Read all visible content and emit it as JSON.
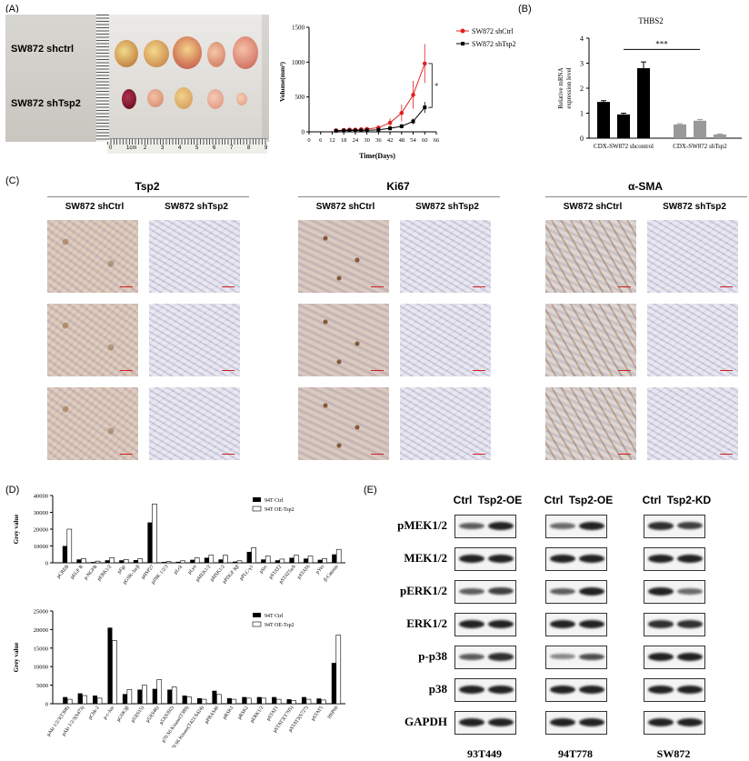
{
  "panels": {
    "a": "(A)",
    "b": "(B)",
    "c": "(C)",
    "d": "(D)",
    "e": "(E)"
  },
  "panelA": {
    "photo_label_top": "SW872 shctrl",
    "photo_label_bottom": "SW872 shTsp2",
    "ruler_digits": [
      "0",
      "1cm",
      "2",
      "3",
      "4",
      "5",
      "6",
      "7",
      "8",
      "9"
    ]
  },
  "growth": {
    "chart_data": {
      "type": "line",
      "xlabel": "Time(Days)",
      "ylabel": "Volume(mm³)",
      "x_ticks": [
        0,
        6,
        12,
        18,
        24,
        30,
        36,
        42,
        48,
        54,
        60,
        66
      ],
      "y_ticks": [
        0,
        500,
        1000,
        1500
      ],
      "xlim": [
        0,
        66
      ],
      "ylim": [
        0,
        1500
      ],
      "x": [
        14,
        18,
        21,
        24,
        27,
        30,
        36,
        42,
        48,
        54,
        60
      ],
      "series": [
        {
          "name": "SW872 shCtrl",
          "color": "#e02020",
          "values": [
            20,
            25,
            30,
            30,
            35,
            40,
            60,
            130,
            270,
            530,
            980
          ],
          "err": [
            10,
            10,
            10,
            12,
            12,
            15,
            25,
            60,
            120,
            200,
            280
          ]
        },
        {
          "name": "SW872 shTsp2",
          "color": "#000000",
          "values": [
            15,
            18,
            20,
            20,
            20,
            22,
            30,
            50,
            80,
            150,
            350
          ],
          "err": [
            5,
            5,
            5,
            6,
            6,
            8,
            10,
            20,
            30,
            40,
            80
          ]
        }
      ],
      "annotation": "*"
    }
  },
  "thbs2": {
    "chart_data": {
      "type": "bar",
      "title": "THBS2",
      "ylabel": "Relative mRNA expression level",
      "y_ticks": [
        0,
        1,
        2,
        3,
        4
      ],
      "ylim": [
        0,
        4
      ],
      "groups": [
        "CDX-SW872 shcontrol",
        "CDX-SW872 shTsp2"
      ],
      "values": [
        1.45,
        0.95,
        2.8,
        0.55,
        0.7,
        0.15
      ],
      "errors": [
        0.05,
        0.05,
        0.25,
        0.03,
        0.05,
        0.02
      ],
      "group_index": [
        0,
        0,
        0,
        1,
        1,
        1
      ],
      "colors": [
        "#000000",
        "#999999"
      ],
      "annotation": "***"
    }
  },
  "ihc": {
    "groups": [
      {
        "title": "Tsp2",
        "cols": [
          "SW872 shCtrl",
          "SW872 shTsp2"
        ]
      },
      {
        "title": "Ki67",
        "cols": [
          "SW872 shCtrl",
          "SW872 shTsp2"
        ]
      },
      {
        "title": "α-SMA",
        "cols": [
          "SW872 shCtrl",
          "SW872 shTsp2"
        ]
      }
    ]
  },
  "array1": {
    "chart_data": {
      "type": "bar",
      "ylabel": "Grey value",
      "y_ticks": [
        0,
        10000,
        20000,
        30000,
        40000
      ],
      "ylim": [
        0,
        40000
      ],
      "categories": [
        "pCREB",
        "pEGF R",
        "p-NGFR",
        "pERK1/2",
        "pFgr",
        "pGSK-3α/β",
        "pHSP27",
        "pJNK 1/2/3",
        "pLck",
        "pLyn",
        "pMEK1/2",
        "pMSK1/2",
        "pPDGF Rβ",
        "pPLC-γ1",
        "pSrc",
        "pSTAT2",
        "pSTAT5a/b",
        "pSTAT6",
        "pYes",
        "β-Catenin"
      ],
      "series": [
        {
          "name": "94T Ctrl",
          "values": [
            10000,
            2000,
            500,
            1500,
            1500,
            1600,
            24000,
            500,
            600,
            1800,
            3000,
            2000,
            700,
            6500,
            2000,
            1500,
            3000,
            2500,
            1800,
            5000
          ]
        },
        {
          "name": "94T OE-Tsp2",
          "values": [
            20000,
            2500,
            1000,
            3000,
            2000,
            2500,
            35000,
            800,
            1200,
            3000,
            4500,
            4500,
            1200,
            9000,
            4000,
            2200,
            4500,
            4000,
            2500,
            8000
          ]
        }
      ]
    }
  },
  "array2": {
    "chart_data": {
      "type": "bar",
      "ylabel": "Grey value",
      "y_ticks": [
        0,
        5000,
        10000,
        15000,
        20000,
        25000
      ],
      "ylim": [
        0,
        25000
      ],
      "categories": [
        "pAkt 1/2/3(T308)",
        "pAkt 1/2/3(S473)",
        "pChk-2",
        "p-c-Jun",
        "pGSK3β",
        "p53(S15)",
        "p53(S46)",
        "p53(S392)",
        "p70 S6 Kinase(T389)",
        "p70 S6 Kinase(T421/S424)",
        "pPRAS40",
        "pRSK1",
        "pRSK2",
        "pERK1/2",
        "pSTAT1",
        "pSTAT3(Y705)",
        "pSTAT3(S727)",
        "pSTAT5",
        "HSP60"
      ],
      "series": [
        {
          "name": "94T Ctrl",
          "values": [
            1800,
            2800,
            2200,
            20500,
            2600,
            3800,
            4000,
            3800,
            2200,
            1500,
            3500,
            1500,
            1800,
            1800,
            1800,
            1200,
            1800,
            1400,
            11000
          ]
        },
        {
          "name": "94T OE-Tsp2",
          "values": [
            1200,
            2200,
            1500,
            17000,
            3800,
            5000,
            6500,
            4500,
            1800,
            1200,
            2500,
            1200,
            1500,
            1500,
            1200,
            900,
            1200,
            1000,
            18500
          ]
        }
      ]
    }
  },
  "western": {
    "proteins": [
      "pMEK1/2",
      "MEK1/2",
      "pERK1/2",
      "ERK1/2",
      "p-p38",
      "p38",
      "GAPDH"
    ],
    "blots": [
      {
        "cell": "93T449",
        "headers": [
          "Ctrl",
          "Tsp2-OE"
        ]
      },
      {
        "cell": "94T778",
        "headers": [
          "Ctrl",
          "Tsp2-OE"
        ]
      },
      {
        "cell": "SW872",
        "headers": [
          "Ctrl",
          "Tsp2-KD"
        ]
      }
    ]
  }
}
